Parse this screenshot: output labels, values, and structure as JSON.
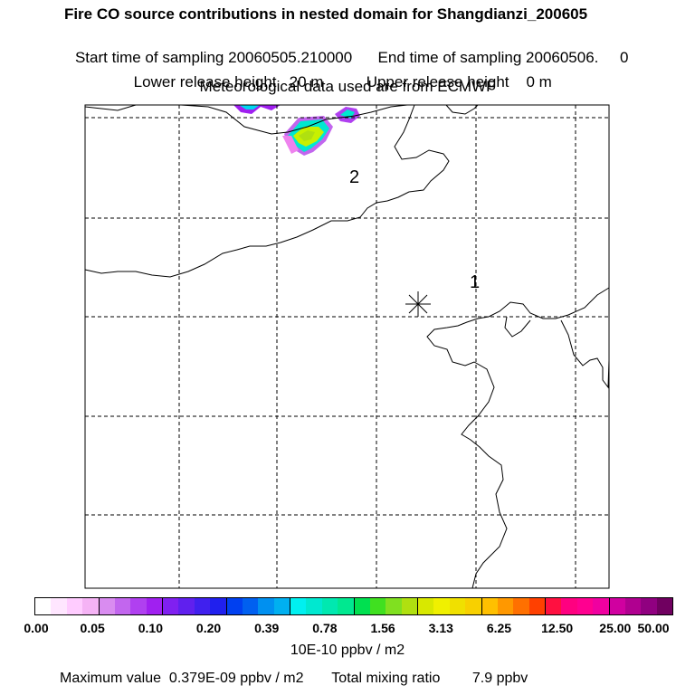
{
  "header": {
    "title": "Fire CO source contributions in nested domain for Shangdianzi_200605",
    "start_label": "Start time of sampling",
    "start_value": "20060505.210000",
    "end_label": "End time of sampling",
    "end_value": "20060506.     0",
    "lower_label": "Lower release height",
    "lower_value": "20 m",
    "upper_label": "Upper release height",
    "upper_value": "0 m",
    "met_line": "Meteorological data used are from ECMWF"
  },
  "map": {
    "region_labels": [
      "2",
      "1"
    ],
    "station_marker": "star-icon"
  },
  "colorbar": {
    "ticks": [
      "0.00",
      "0.05",
      "0.10",
      "0.20",
      "0.39",
      "0.78",
      "1.56",
      "3.13",
      "6.25",
      "12.50",
      "25.00",
      "50.00"
    ],
    "units": "10E-10 ppbv / m2",
    "colors": [
      "#ffffff",
      "#ffe6ff",
      "#ffccff",
      "#f5b3f5",
      "#d98cf0",
      "#c266ee",
      "#b040f0",
      "#a020f0",
      "#8020f0",
      "#6020ee",
      "#4020ee",
      "#2020ee",
      "#0040f0",
      "#0060f0",
      "#0090f0",
      "#00b0f0",
      "#00f0f0",
      "#00e8d0",
      "#00e8b0",
      "#00e890",
      "#00e050",
      "#40e020",
      "#80e020",
      "#b0e010",
      "#d8e800",
      "#f0f000",
      "#f0e000",
      "#f8d000",
      "#ffc000",
      "#ff9800",
      "#ff7000",
      "#ff4000",
      "#ff1040",
      "#ff0080",
      "#ff0090",
      "#f000a0",
      "#d000a0",
      "#b00090",
      "#900080",
      "#700060"
    ]
  },
  "footer": {
    "max_label": "Maximum value",
    "max_value": "0.379E-09 ppbv / m2",
    "total_label": "Total mixing ratio",
    "total_value": "7.9 ppbv"
  }
}
